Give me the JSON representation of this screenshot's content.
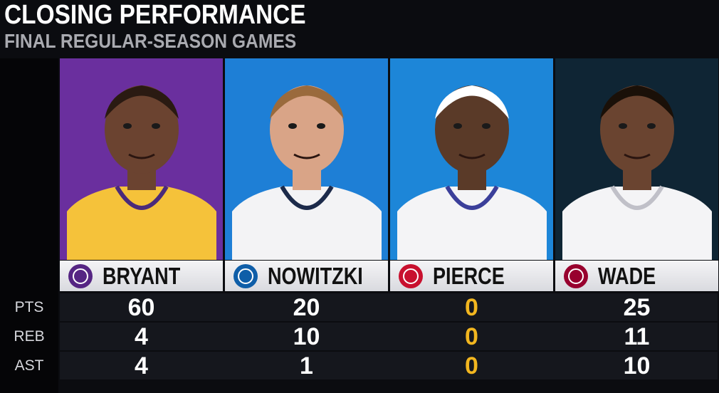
{
  "header": {
    "title": "CLOSING PERFORMANCE",
    "subtitle": "FINAL REGULAR-SEASON GAMES"
  },
  "table": {
    "columns": [
      "BRYANT",
      "NOWITZKI",
      "PIERCE",
      "WADE"
    ],
    "row_labels": [
      "PTS",
      "REB",
      "AST"
    ],
    "rows": [
      [
        60,
        20,
        0,
        25
      ],
      [
        4,
        10,
        0,
        11
      ],
      [
        4,
        1,
        0,
        10
      ]
    ]
  }
}
